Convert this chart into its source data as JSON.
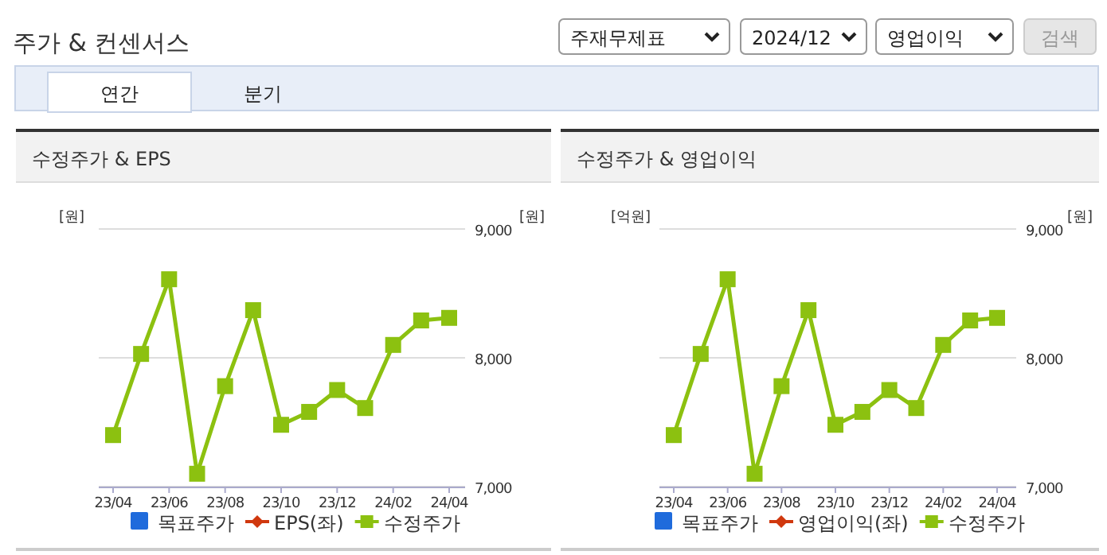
{
  "chart_data": [
    {
      "type": "other",
      "title": "주가 & 컨센서스",
      "annotations": [
        "주재무제표",
        "2024/12",
        "영업이익",
        "검색",
        "연간",
        "분기"
      ]
    },
    {
      "type": "line",
      "title": "수정주가 & EPS",
      "ylabel": "[원]",
      "y2label": "[원]",
      "categories": [
        "23/04",
        null,
        "23/06",
        null,
        "23/08",
        null,
        "23/10",
        null,
        "23/12",
        null,
        "24/02",
        null,
        "24/04"
      ],
      "y2lim": [
        7000,
        9000
      ],
      "y2ticks": [
        {
          "value": 7000,
          "label": "7,000"
        },
        {
          "value": 8000,
          "label": "8,000"
        },
        {
          "value": 9000,
          "label": "9,000"
        }
      ],
      "grid": "y",
      "legend": "bottom",
      "series": [
        {
          "name": "목표주가",
          "type": "bar",
          "color": "#1f6bdc",
          "values": [
            null,
            null,
            null,
            null,
            null,
            null,
            null,
            null,
            null,
            null,
            null,
            null,
            null
          ]
        },
        {
          "name": "EPS(좌)",
          "type": "line",
          "color": "#d0380e",
          "marker": "diamond",
          "values": [
            null,
            null,
            null,
            null,
            null,
            null,
            null,
            null,
            null,
            null,
            null,
            null,
            null
          ]
        },
        {
          "name": "수정주가",
          "type": "line",
          "color": "#8cc110",
          "marker": "square",
          "axis": "y2",
          "values": [
            7400,
            8030,
            8610,
            7100,
            7780,
            8370,
            7480,
            7580,
            7750,
            7610,
            8100,
            8290,
            8310
          ]
        }
      ]
    },
    {
      "type": "line",
      "title": "수정주가 & 영업이익",
      "ylabel": "[억원]",
      "y2label": "[원]",
      "categories": [
        "23/04",
        null,
        "23/06",
        null,
        "23/08",
        null,
        "23/10",
        null,
        "23/12",
        null,
        "24/02",
        null,
        "24/04"
      ],
      "y2lim": [
        7000,
        9000
      ],
      "y2ticks": [
        {
          "value": 7000,
          "label": "7,000"
        },
        {
          "value": 8000,
          "label": "8,000"
        },
        {
          "value": 9000,
          "label": "9,000"
        }
      ],
      "grid": "y",
      "legend": "bottom",
      "series": [
        {
          "name": "목표주가",
          "type": "bar",
          "color": "#1f6bdc",
          "values": [
            null,
            null,
            null,
            null,
            null,
            null,
            null,
            null,
            null,
            null,
            null,
            null,
            null
          ]
        },
        {
          "name": "영업이익(좌)",
          "type": "line",
          "color": "#d0380e",
          "marker": "diamond",
          "values": [
            null,
            null,
            null,
            null,
            null,
            null,
            null,
            null,
            null,
            null,
            null,
            null,
            null
          ]
        },
        {
          "name": "수정주가",
          "type": "line",
          "color": "#8cc110",
          "marker": "square",
          "axis": "y2",
          "values": [
            7400,
            8030,
            8610,
            7100,
            7780,
            8370,
            7480,
            7580,
            7750,
            7610,
            8100,
            8290,
            8310
          ]
        }
      ]
    }
  ]
}
